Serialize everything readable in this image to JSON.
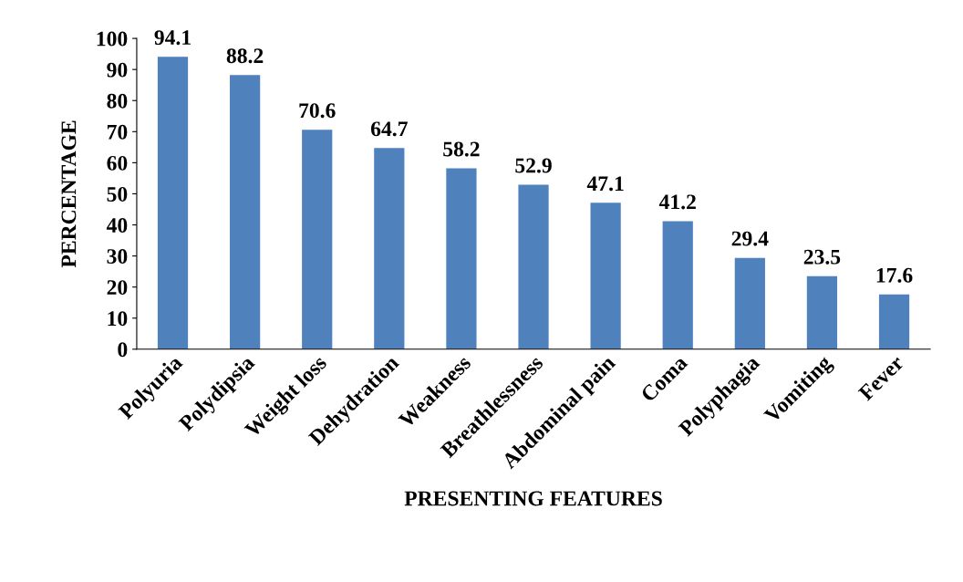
{
  "chart_data": {
    "type": "bar",
    "xlabel": "PRESENTING FEATURES",
    "ylabel": "PERCENTAGE",
    "categories": [
      "Polyuria",
      "Polydipsia",
      "Weight loss",
      "Dehydration",
      "Weakness",
      "Breathlessness",
      "Abdominal pain",
      "Coma",
      "Polyphagia",
      "Vomiting",
      "Fever"
    ],
    "values": [
      94.1,
      88.2,
      70.6,
      64.7,
      58.2,
      52.9,
      47.1,
      41.2,
      29.4,
      23.5,
      17.6
    ],
    "color": "#4f81bd",
    "ylim": [
      0,
      100
    ],
    "yticks": [
      0,
      10,
      20,
      30,
      40,
      50,
      60,
      70,
      80,
      90,
      100
    ],
    "grid": false,
    "data_labels": true
  }
}
